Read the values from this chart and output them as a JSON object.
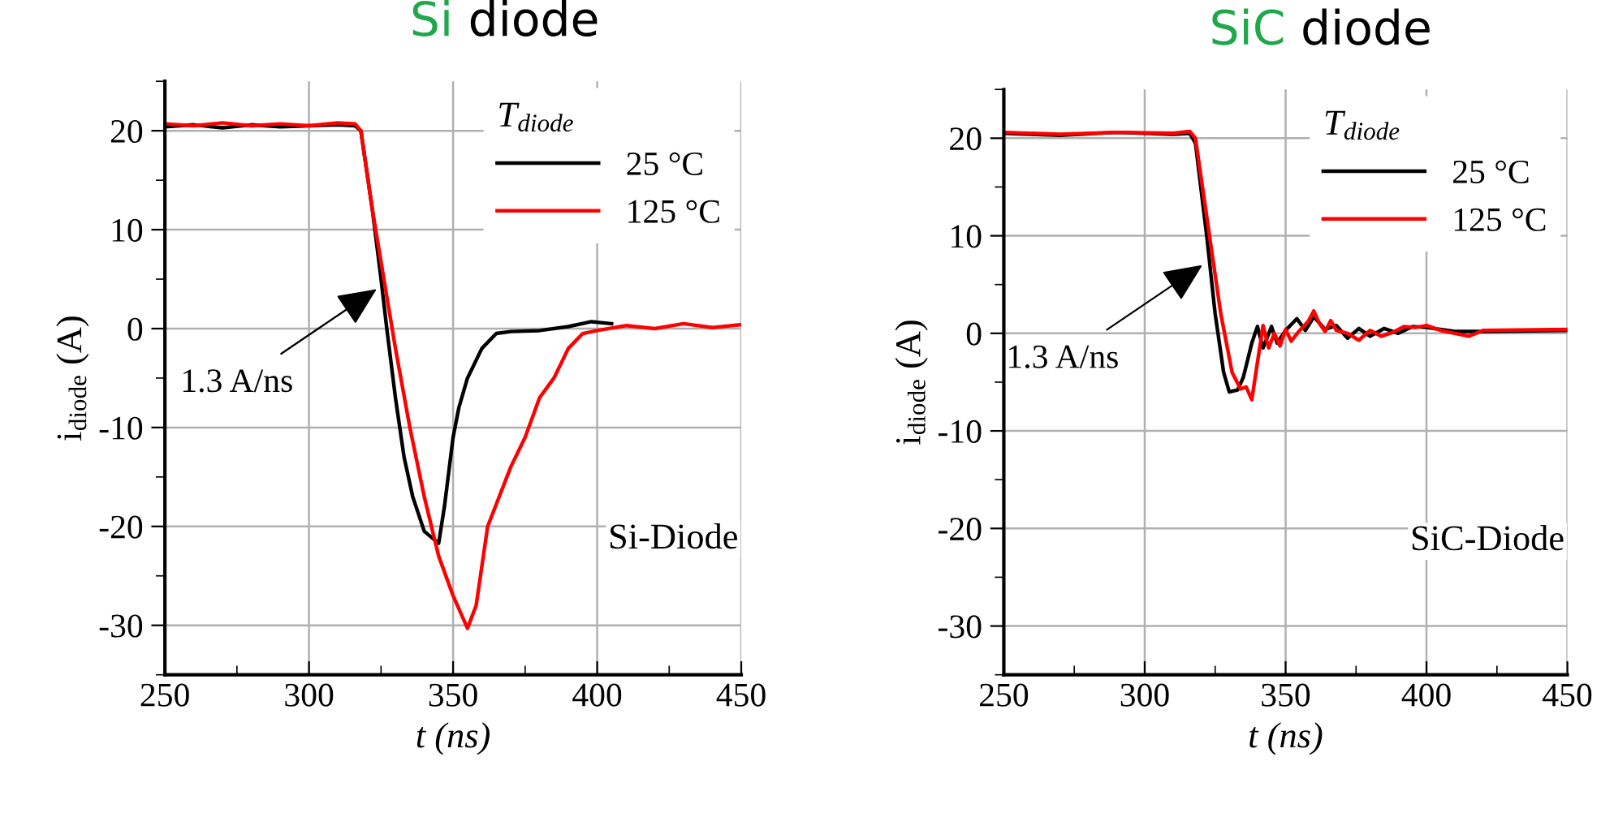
{
  "chart_data": [
    {
      "type": "line",
      "title": "Si diode",
      "xlabel": "t (ns)",
      "ylabel": "i$_{diode}$ (A)",
      "legend_title": "T$_{diode}$",
      "annotations": [
        {
          "text": "1.3 A/ns",
          "x": 323.5,
          "y": 4
        },
        "Si-Diode"
      ],
      "xlim": [
        250,
        450
      ],
      "ylim": [
        -35,
        25
      ],
      "xticks": [
        250,
        300,
        350,
        400,
        450
      ],
      "yticks": [
        -30,
        -20,
        -10,
        0,
        10,
        20
      ],
      "grid": true,
      "legend": "top right",
      "series": [
        {
          "name": "25 °C",
          "color": "#000000",
          "x": [
            250,
            260,
            270,
            280,
            290,
            300,
            310,
            316,
            318,
            322,
            325,
            327,
            330,
            333,
            336,
            340,
            345,
            347,
            350,
            352,
            355,
            360,
            365,
            370,
            380,
            390,
            398,
            405
          ],
          "values": [
            20.4,
            20.6,
            20.3,
            20.6,
            20.4,
            20.5,
            20.6,
            20.5,
            20,
            12,
            5,
            0,
            -7,
            -13,
            -17,
            -20.5,
            -21.7,
            -18,
            -11,
            -8,
            -5,
            -2,
            -0.5,
            -0.3,
            -0.2,
            0.2,
            0.7,
            0.5
          ]
        },
        {
          "name": "125 °C",
          "color": "#ff0000",
          "x": [
            250,
            260,
            270,
            280,
            290,
            300,
            310,
            316,
            318,
            322,
            326,
            330,
            335,
            340,
            345,
            350,
            355,
            358,
            362,
            366,
            370,
            375,
            380,
            385,
            390,
            395,
            400,
            410,
            420,
            430,
            440,
            450
          ],
          "values": [
            20.7,
            20.5,
            20.8,
            20.5,
            20.7,
            20.5,
            20.8,
            20.7,
            20,
            12,
            5,
            -2,
            -10,
            -17,
            -23,
            -27,
            -30.3,
            -28,
            -20,
            -17,
            -14,
            -11,
            -7,
            -5,
            -2,
            -0.5,
            -0.2,
            0.3,
            0,
            0.5,
            0.1,
            0.4
          ]
        }
      ]
    },
    {
      "type": "line",
      "title": "SiC diode",
      "xlabel": "t (ns)",
      "ylabel": "i$_{diode}$ (A)",
      "legend_title": "T$_{diode}$",
      "annotations": [
        {
          "text": "1.3 A/ns",
          "x": 320.5,
          "y": 7
        },
        "SiC-Diode"
      ],
      "xlim": [
        250,
        450
      ],
      "ylim": [
        -35,
        25
      ],
      "xticks": [
        250,
        300,
        350,
        400,
        450
      ],
      "yticks": [
        -30,
        -20,
        -10,
        0,
        10,
        20
      ],
      "grid": true,
      "legend": "top right",
      "series": [
        {
          "name": "25 °C",
          "color": "#000000",
          "x": [
            250,
            270,
            290,
            310,
            316,
            318,
            322,
            325,
            328,
            330,
            333,
            335,
            338,
            340,
            342,
            345,
            347,
            350,
            354,
            357,
            360,
            364,
            368,
            372,
            376,
            380,
            385,
            390,
            395,
            400,
            410,
            420,
            450
          ],
          "values": [
            20.5,
            20.3,
            20.6,
            20.4,
            20.5,
            19.5,
            10,
            2,
            -4,
            -6,
            -5.8,
            -4.5,
            -1,
            0.7,
            -1.5,
            0.7,
            -1,
            0.3,
            1.5,
            0.3,
            1.7,
            0.4,
            0.8,
            -0.5,
            0.5,
            -0.3,
            0.5,
            0,
            0.7,
            0.6,
            0.2,
            0.2,
            0.3
          ]
        },
        {
          "name": "125 °C",
          "color": "#ff0000",
          "x": [
            250,
            270,
            290,
            310,
            316,
            318,
            323,
            327,
            331,
            334,
            336,
            338,
            340,
            342,
            344,
            346,
            348,
            350,
            352,
            355,
            358,
            360,
            362,
            364,
            366,
            368,
            372,
            376,
            380,
            384,
            388,
            392,
            396,
            400,
            405,
            410,
            415,
            420,
            450
          ],
          "values": [
            20.6,
            20.4,
            20.6,
            20.5,
            20.7,
            20,
            10,
            2,
            -4,
            -5.7,
            -5.5,
            -6.8,
            -3,
            0.8,
            -1.5,
            0,
            -1.3,
            0.4,
            -0.8,
            0.3,
            1.2,
            2.3,
            1,
            0.2,
            1.3,
            0.3,
            0,
            -0.7,
            0.3,
            -0.3,
            0.1,
            0.7,
            0.6,
            0.8,
            0.3,
            0,
            -0.3,
            0.3,
            0.4
          ]
        }
      ]
    }
  ]
}
